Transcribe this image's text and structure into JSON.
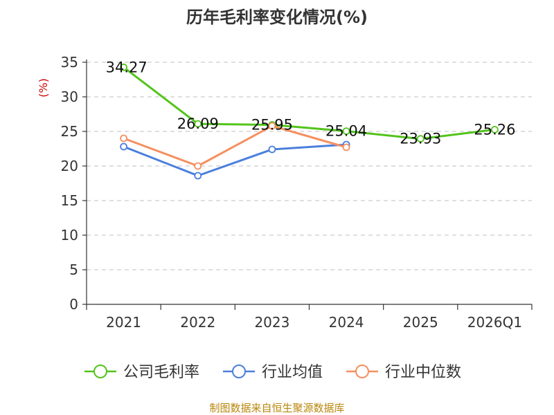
{
  "chart_data": {
    "type": "line",
    "title": "历年毛利率变化情况(%)",
    "ylabel": "(%)",
    "categories": [
      "2021",
      "2022",
      "2023",
      "2024",
      "2025",
      "2026Q1"
    ],
    "ylim": [
      0,
      35
    ],
    "yticks": [
      0,
      5,
      10,
      15,
      20,
      25,
      30,
      35
    ],
    "ytick_labels": [
      "0",
      "5",
      "10",
      "15",
      "20",
      "25",
      "30",
      "35"
    ],
    "grid": true,
    "legend_position": "bottom",
    "series": [
      {
        "name": "公司毛利率",
        "color": "#52c41a",
        "values": [
          34.27,
          26.09,
          25.95,
          25.04,
          23.93,
          25.26
        ],
        "labels": [
          "34.27",
          "26.09",
          "25.95",
          "25.04",
          "23.93",
          "25.26"
        ]
      },
      {
        "name": "行业均值",
        "color": "#4a7fdc",
        "values": [
          22.8,
          18.6,
          22.4,
          23.1,
          null,
          null
        ]
      },
      {
        "name": "行业中位数",
        "color": "#f59060",
        "values": [
          24.0,
          20.0,
          25.8,
          22.7,
          null,
          null
        ]
      }
    ]
  },
  "source": "制图数据来自恒生聚源数据库"
}
